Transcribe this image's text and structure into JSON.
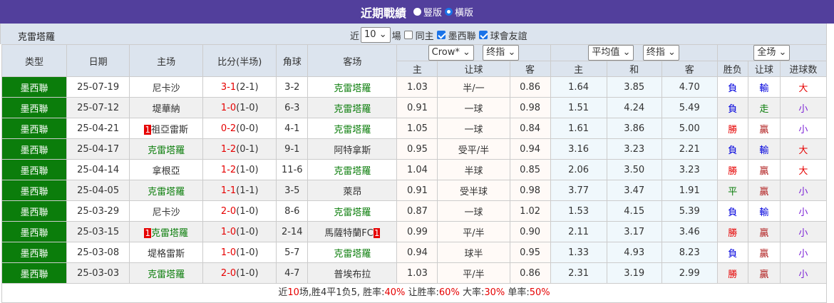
{
  "header": {
    "title": "近期戰績",
    "radio_options": [
      {
        "label": "豎版",
        "selected": false
      },
      {
        "label": "橫版",
        "selected": true
      }
    ]
  },
  "controls": {
    "team": "克雷塔羅",
    "prefix": "近",
    "count": "10",
    "suffix": "場",
    "checkboxes": [
      {
        "label": "同主",
        "checked": false
      },
      {
        "label": "墨西聯",
        "checked": true
      },
      {
        "label": "球會友誼",
        "checked": true
      }
    ]
  },
  "table": {
    "headers": {
      "type": "类型",
      "date": "日期",
      "home": "主场",
      "score": "比分(半场)",
      "corner": "角球",
      "away": "客场",
      "company_select": "Crow*",
      "ah_select": "终指",
      "avg_select": "平均值",
      "eu_select": "终指",
      "scope_select": "全场"
    },
    "subheaders": [
      "主",
      "让球",
      "客",
      "主",
      "和",
      "客",
      "胜负",
      "让球",
      "进球数"
    ],
    "rows": [
      {
        "type": "墨西聯",
        "date": "25-07-19",
        "home": "尼卡沙",
        "home_card": "",
        "home_is_team": false,
        "score": "3-1",
        "half": "(2-1)",
        "corner": "3-2",
        "away": "克雷塔羅",
        "away_card": "",
        "away_is_team": true,
        "ah_h": "1.03",
        "ah_line": "半/一",
        "ah_a": "0.86",
        "eu_h": "1.64",
        "eu_d": "3.85",
        "eu_a": "4.70",
        "result": "負",
        "ah_result": "輸",
        "ou": "大"
      },
      {
        "type": "墨西聯",
        "date": "25-07-12",
        "home": "堤華納",
        "home_card": "",
        "home_is_team": false,
        "score": "1-0",
        "half": "(1-0)",
        "corner": "6-3",
        "away": "克雷塔羅",
        "away_card": "",
        "away_is_team": true,
        "ah_h": "0.91",
        "ah_line": "一球",
        "ah_a": "0.98",
        "eu_h": "1.51",
        "eu_d": "4.24",
        "eu_a": "5.49",
        "result": "負",
        "ah_result": "走",
        "ou": "小"
      },
      {
        "type": "墨西聯",
        "date": "25-04-21",
        "home": "祖亞雷斯",
        "home_card": "1",
        "home_is_team": false,
        "score": "0-2",
        "half": "(0-0)",
        "corner": "4-1",
        "away": "克雷塔羅",
        "away_card": "",
        "away_is_team": true,
        "ah_h": "1.05",
        "ah_line": "一球",
        "ah_a": "0.84",
        "eu_h": "1.61",
        "eu_d": "3.86",
        "eu_a": "5.00",
        "result": "勝",
        "ah_result": "贏",
        "ou": "小"
      },
      {
        "type": "墨西聯",
        "date": "25-04-17",
        "home": "克雷塔羅",
        "home_card": "",
        "home_is_team": true,
        "score": "1-2",
        "half": "(0-1)",
        "corner": "9-1",
        "away": "阿特拿斯",
        "away_card": "",
        "away_is_team": false,
        "ah_h": "0.95",
        "ah_line": "受平/半",
        "ah_a": "0.94",
        "eu_h": "3.16",
        "eu_d": "3.23",
        "eu_a": "2.21",
        "result": "負",
        "ah_result": "輸",
        "ou": "大"
      },
      {
        "type": "墨西聯",
        "date": "25-04-14",
        "home": "拿根亞",
        "home_card": "",
        "home_is_team": false,
        "score": "1-2",
        "half": "(1-0)",
        "corner": "11-6",
        "away": "克雷塔羅",
        "away_card": "",
        "away_is_team": true,
        "ah_h": "1.04",
        "ah_line": "半球",
        "ah_a": "0.85",
        "eu_h": "2.06",
        "eu_d": "3.50",
        "eu_a": "3.23",
        "result": "勝",
        "ah_result": "贏",
        "ou": "大"
      },
      {
        "type": "墨西聯",
        "date": "25-04-05",
        "home": "克雷塔羅",
        "home_card": "",
        "home_is_team": true,
        "score": "1-1",
        "half": "(1-1)",
        "corner": "3-5",
        "away": "萊昂",
        "away_card": "",
        "away_is_team": false,
        "ah_h": "0.91",
        "ah_line": "受半球",
        "ah_a": "0.98",
        "eu_h": "3.77",
        "eu_d": "3.47",
        "eu_a": "1.91",
        "result": "平",
        "ah_result": "贏",
        "ou": "小"
      },
      {
        "type": "墨西聯",
        "date": "25-03-29",
        "home": "尼卡沙",
        "home_card": "",
        "home_is_team": false,
        "score": "2-0",
        "half": "(1-0)",
        "corner": "8-6",
        "away": "克雷塔羅",
        "away_card": "",
        "away_is_team": true,
        "ah_h": "0.87",
        "ah_line": "一球",
        "ah_a": "1.02",
        "eu_h": "1.53",
        "eu_d": "4.15",
        "eu_a": "5.39",
        "result": "負",
        "ah_result": "輸",
        "ou": "小"
      },
      {
        "type": "墨西聯",
        "date": "25-03-15",
        "home": "克雷塔羅",
        "home_card": "1",
        "home_is_team": true,
        "score": "1-0",
        "half": "(1-0)",
        "corner": "2-14",
        "away": "馬薩特蘭FC",
        "away_card": "1",
        "away_is_team": false,
        "ah_h": "0.99",
        "ah_line": "平/半",
        "ah_a": "0.90",
        "eu_h": "2.11",
        "eu_d": "3.17",
        "eu_a": "3.46",
        "result": "勝",
        "ah_result": "贏",
        "ou": "小"
      },
      {
        "type": "墨西聯",
        "date": "25-03-08",
        "home": "堤格雷斯",
        "home_card": "",
        "home_is_team": false,
        "score": "1-0",
        "half": "(1-0)",
        "corner": "5-7",
        "away": "克雷塔羅",
        "away_card": "",
        "away_is_team": true,
        "ah_h": "0.94",
        "ah_line": "球半",
        "ah_a": "0.95",
        "eu_h": "1.33",
        "eu_d": "4.93",
        "eu_a": "8.23",
        "result": "負",
        "ah_result": "贏",
        "ou": "小"
      },
      {
        "type": "墨西聯",
        "date": "25-03-03",
        "home": "克雷塔羅",
        "home_card": "",
        "home_is_team": true,
        "score": "2-0",
        "half": "(1-0)",
        "corner": "4-7",
        "away": "普埃布拉",
        "away_card": "",
        "away_is_team": false,
        "ah_h": "1.03",
        "ah_line": "平/半",
        "ah_a": "0.86",
        "eu_h": "2.31",
        "eu_d": "3.19",
        "eu_a": "2.99",
        "result": "勝",
        "ah_result": "贏",
        "ou": "小"
      }
    ]
  },
  "summary": {
    "p1": "近",
    "n": "10",
    "p2": "场,胜4平1负5, 胜率:",
    "win": "40%",
    "p3": " 让胜率:",
    "ahwin": "60%",
    "p4": " 大率:",
    "over": "30%",
    "p5": " 单率:",
    "odd": "50%"
  },
  "colors": {
    "title_bg": "#523f9c",
    "type_bg": "#0b7d0b",
    "team": "#0a7d0a",
    "score": "#e60000"
  }
}
